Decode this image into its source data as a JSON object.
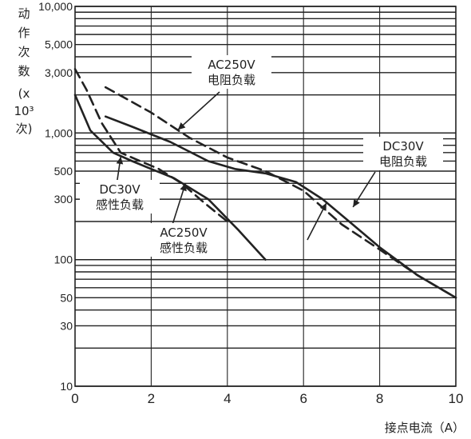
{
  "chart_data": {
    "type": "line",
    "ylabel_lines": [
      "动",
      "作",
      "次",
      "数"
    ],
    "yunit_lines": [
      "(x",
      "10³",
      "次)"
    ],
    "xlabel": "接点电流（A）",
    "xlim": [
      0,
      10
    ],
    "ylim": [
      10,
      10000
    ],
    "yscale": "log",
    "x_ticks": [
      "0",
      "2",
      "4",
      "6",
      "8",
      "10"
    ],
    "y_ticks": [
      {
        "value": 10000,
        "label": "10,000"
      },
      {
        "value": 5000,
        "label": "5,000"
      },
      {
        "value": 3000,
        "label": "3,000"
      },
      {
        "value": 1000,
        "label": "1,000"
      },
      {
        "value": 500,
        "label": "500"
      },
      {
        "value": 300,
        "label": "300"
      },
      {
        "value": 100,
        "label": "100"
      },
      {
        "value": 50,
        "label": "50"
      },
      {
        "value": 30,
        "label": "30"
      },
      {
        "value": 10,
        "label": "10"
      }
    ],
    "grid": true,
    "series": [
      {
        "name": "AC250V 电阻负载",
        "style": "solid",
        "x": [
          0.8,
          1.5,
          2.5,
          3.5,
          4.2,
          5.0,
          5.8,
          6.5,
          7.2,
          8.0,
          9.0,
          10.0
        ],
        "y": [
          1350,
          1120,
          850,
          600,
          520,
          480,
          410,
          300,
          200,
          125,
          75,
          50
        ]
      },
      {
        "name": "DC30V 电阻负载",
        "style": "dashed",
        "x": [
          0.8,
          2.0,
          3.0,
          4.0,
          5.0,
          6.0,
          7.0,
          8.0,
          9.0,
          10.0
        ],
        "y": [
          2300,
          1450,
          920,
          640,
          500,
          350,
          190,
          120,
          75,
          50
        ]
      },
      {
        "name": "DC30V 感性负载",
        "style": "solid",
        "x": [
          0.0,
          0.4,
          1.0,
          1.5,
          2.0,
          2.6,
          3.5,
          4.3,
          5.0
        ],
        "y": [
          2000,
          1050,
          700,
          600,
          520,
          440,
          300,
          170,
          100
        ]
      },
      {
        "name": "AC250V 感性负载",
        "style": "dashed",
        "x": [
          0.0,
          0.3,
          0.7,
          1.2,
          1.6,
          2.2,
          2.8,
          3.4,
          4.0
        ],
        "y": [
          3200,
          2200,
          1200,
          700,
          620,
          520,
          400,
          280,
          200
        ]
      }
    ],
    "annotations": [
      {
        "lines": [
          "AC250V",
          "电阻负载"
        ],
        "series": "AC250V 电阻负载"
      },
      {
        "lines": [
          "DC30V",
          "电阻负载"
        ],
        "series": "DC30V 电阻负载"
      },
      {
        "lines": [
          "DC30V",
          "感性负载"
        ],
        "series": "DC30V 感性负载"
      },
      {
        "lines": [
          "AC250V",
          "感性负载"
        ],
        "series": "AC250V 感性负载"
      }
    ]
  }
}
